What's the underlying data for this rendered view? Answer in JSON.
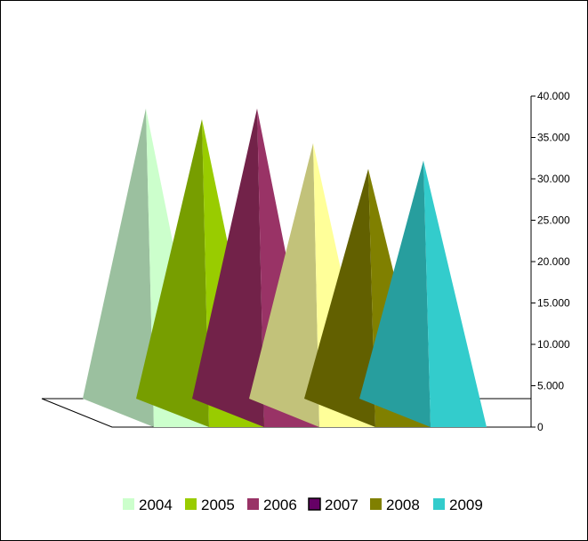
{
  "chart_data": {
    "type": "bar",
    "subtype": "3d-pyramid",
    "title": "",
    "xlabel": "",
    "ylabel": "",
    "ylim": [
      0,
      40000
    ],
    "y_ticks": [
      "0",
      "5.000",
      "10.000",
      "15.000",
      "20.000",
      "25.000",
      "30.000",
      "35.000",
      "40.000"
    ],
    "y_tick_values": [
      0,
      5000,
      10000,
      15000,
      20000,
      25000,
      30000,
      35000,
      40000
    ],
    "grid": false,
    "legend_position": "bottom",
    "series": [
      {
        "name": "2004",
        "value": 38500,
        "color": "#CCFFCC",
        "shade": "#9BC09F",
        "legend_color": "#CCFFCC"
      },
      {
        "name": "2005",
        "value": 37200,
        "color": "#99CC00",
        "shade": "#779E00",
        "legend_color": "#99CC00"
      },
      {
        "name": "2006",
        "value": 38500,
        "color": "#993366",
        "shade": "#722249",
        "legend_color": "#993366"
      },
      {
        "name": "2007",
        "value": 34300,
        "color": "#FFFF99",
        "shade": "#C2C27A",
        "legend_color": "#660066"
      },
      {
        "name": "2008",
        "value": 31200,
        "color": "#808000",
        "shade": "#626000",
        "legend_color": "#808000"
      },
      {
        "name": "2009",
        "value": 32200,
        "color": "#33CCCC",
        "shade": "#279E9E",
        "legend_color": "#33CCCC"
      }
    ]
  }
}
